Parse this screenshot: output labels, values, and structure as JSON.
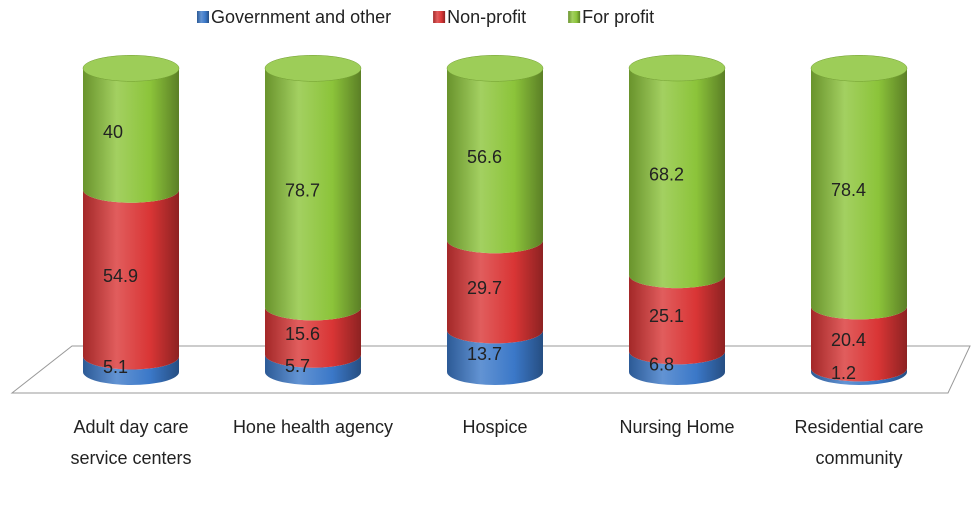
{
  "chart_data": {
    "type": "stacked_cylinder",
    "categories": [
      "Adult day care service centers",
      "Hone health agency",
      "Hospice",
      "Nursing Home",
      "Residential care community"
    ],
    "series": [
      {
        "name": "Government and other",
        "color": "#3b78c8",
        "values": [
          5.1,
          5.7,
          13.7,
          6.8,
          1.2
        ]
      },
      {
        "name": "Non-profit",
        "color": "#d93535",
        "values": [
          54.9,
          15.6,
          29.7,
          25.1,
          20.4
        ]
      },
      {
        "name": "For profit",
        "color": "#8cc43a",
        "values": [
          40,
          78.7,
          56.6,
          68.2,
          78.4
        ]
      }
    ],
    "legend": "top"
  }
}
